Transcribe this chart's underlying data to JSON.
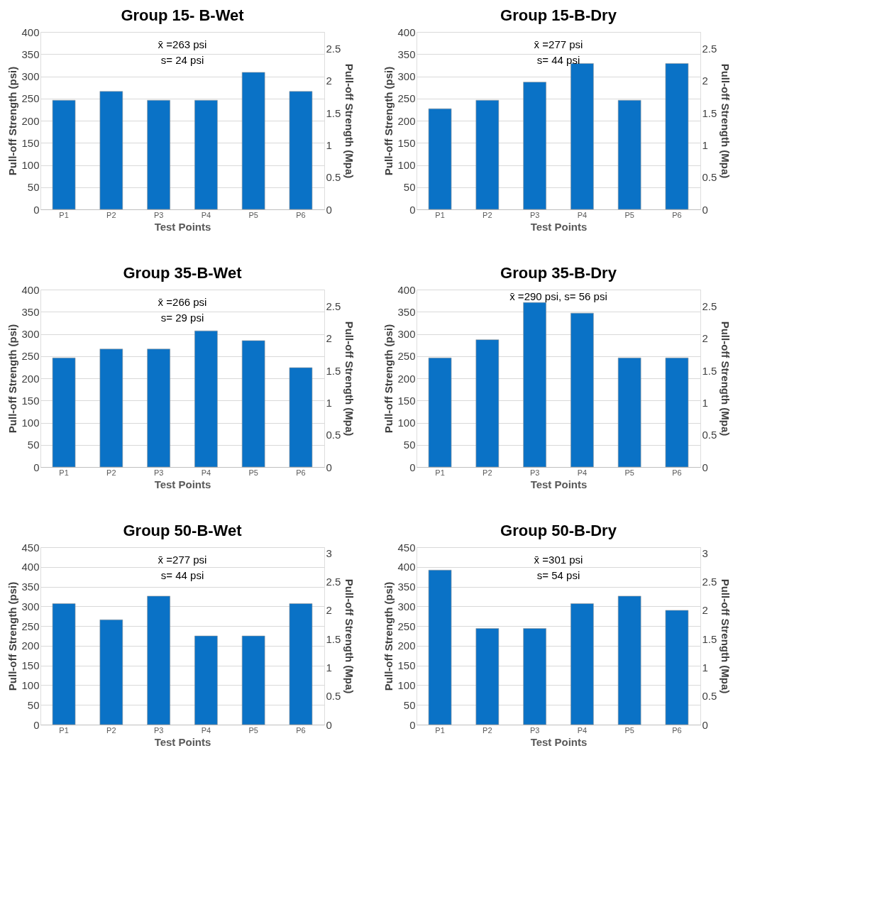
{
  "chart_data": [
    {
      "type": "bar",
      "title": "Group 15- B-Wet",
      "xlabel": "Test Points",
      "ylabel": "Pull-off Strength (psi)",
      "y2label": "Pull-off Strength (Mpa)",
      "categories": [
        "P1",
        "P2",
        "P3",
        "P4",
        "P5",
        "P6"
      ],
      "series": [
        {
          "color": "#0a72c6",
          "values": [
            246,
            266,
            246,
            246,
            309,
            266
          ]
        }
      ],
      "ylim": [
        0,
        400
      ],
      "yticks": [
        0,
        50,
        100,
        150,
        200,
        250,
        300,
        350,
        400
      ],
      "y2lim": [
        0,
        2.758
      ],
      "y2ticks": [
        0,
        0.5,
        1,
        1.5,
        2,
        2.5
      ],
      "grid": "y",
      "annotations": [
        "x̄ =263 psi",
        "s= 24 psi"
      ]
    },
    {
      "type": "bar",
      "title": "Group 15-B-Dry",
      "xlabel": "Test Points",
      "ylabel": "Pull-off Strength (psi)",
      "y2label": "Pull-off Strength (Mpa)",
      "categories": [
        "P1",
        "P2",
        "P3",
        "P4",
        "P5",
        "P6"
      ],
      "series": [
        {
          "color": "#0a72c6",
          "values": [
            227,
            246,
            287,
            329,
            246,
            329
          ]
        }
      ],
      "ylim": [
        0,
        400
      ],
      "yticks": [
        0,
        50,
        100,
        150,
        200,
        250,
        300,
        350,
        400
      ],
      "y2lim": [
        0,
        2.758
      ],
      "y2ticks": [
        0,
        0.5,
        1,
        1.5,
        2,
        2.5
      ],
      "grid": "y",
      "annotations": [
        "x̄ =277 psi",
        "s= 44 psi"
      ]
    },
    {
      "type": "bar",
      "title": "Group 35-B-Wet",
      "xlabel": "Test Points",
      "ylabel": "Pull-off Strength (psi)",
      "y2label": "Pull-off Strength (Mpa)",
      "categories": [
        "P1",
        "P2",
        "P3",
        "P4",
        "P5",
        "P6"
      ],
      "series": [
        {
          "color": "#0a72c6",
          "values": [
            246,
            266,
            266,
            307,
            285,
            224
          ]
        }
      ],
      "ylim": [
        0,
        400
      ],
      "yticks": [
        0,
        50,
        100,
        150,
        200,
        250,
        300,
        350,
        400
      ],
      "y2lim": [
        0,
        2.758
      ],
      "y2ticks": [
        0,
        0.5,
        1,
        1.5,
        2,
        2.5
      ],
      "grid": "y",
      "annotations": [
        "x̄ =266 psi",
        "s= 29 psi"
      ]
    },
    {
      "type": "bar",
      "title": "Group 35-B-Dry",
      "xlabel": "Test Points",
      "ylabel": "Pull-off Strength (psi)",
      "y2label": "Pull-off Strength (Mpa)",
      "categories": [
        "P1",
        "P2",
        "P3",
        "P4",
        "P5",
        "P6"
      ],
      "series": [
        {
          "color": "#0a72c6",
          "values": [
            246,
            287,
            371,
            347,
            246,
            246
          ]
        }
      ],
      "ylim": [
        0,
        400
      ],
      "yticks": [
        0,
        50,
        100,
        150,
        200,
        250,
        300,
        350,
        400
      ],
      "y2lim": [
        0,
        2.758
      ],
      "y2ticks": [
        0,
        0.5,
        1,
        1.5,
        2,
        2.5
      ],
      "grid": "y",
      "annotations": [
        "x̄ =290 psi, s= 56 psi"
      ]
    },
    {
      "type": "bar",
      "title": "Group 50-B-Wet",
      "xlabel": "Test Points",
      "ylabel": "Pull-off Strength (psi)",
      "y2label": "Pull-off Strength (Mpa)",
      "categories": [
        "P1",
        "P2",
        "P3",
        "P4",
        "P5",
        "P6"
      ],
      "series": [
        {
          "color": "#0a72c6",
          "values": [
            307,
            266,
            326,
            225,
            225,
            307
          ]
        }
      ],
      "ylim": [
        0,
        450
      ],
      "yticks": [
        0,
        50,
        100,
        150,
        200,
        250,
        300,
        350,
        400,
        450
      ],
      "y2lim": [
        0,
        3.103
      ],
      "y2ticks": [
        0,
        0.5,
        1,
        1.5,
        2,
        2.5,
        3
      ],
      "grid": "y",
      "annotations": [
        "x̄ =277 psi",
        "s= 44 psi"
      ]
    },
    {
      "type": "bar",
      "title": "Group 50-B-Dry",
      "xlabel": "Test Points",
      "ylabel": "Pull-off Strength (psi)",
      "y2label": "Pull-off Strength (Mpa)",
      "categories": [
        "P1",
        "P2",
        "P3",
        "P4",
        "P5",
        "P6"
      ],
      "series": [
        {
          "color": "#0a72c6",
          "values": [
            392,
            244,
            244,
            307,
            326,
            290
          ]
        }
      ],
      "ylim": [
        0,
        450
      ],
      "yticks": [
        0,
        50,
        100,
        150,
        200,
        250,
        300,
        350,
        400,
        450
      ],
      "y2lim": [
        0,
        3.103
      ],
      "y2ticks": [
        0,
        0.5,
        1,
        1.5,
        2,
        2.5,
        3
      ],
      "grid": "y",
      "annotations": [
        "x̄ =301 psi",
        "s= 54 psi"
      ]
    }
  ]
}
